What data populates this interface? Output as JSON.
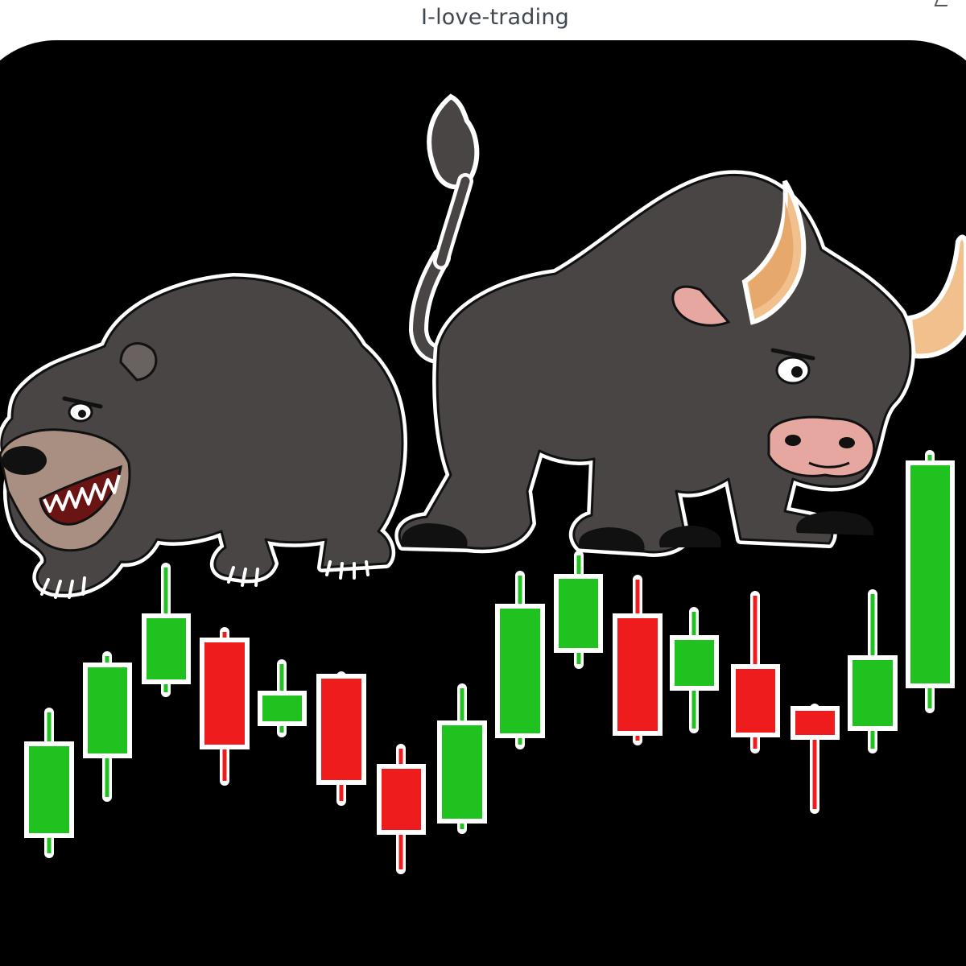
{
  "header": {
    "caption": "I-love-trading"
  },
  "artwork": {
    "subjects": [
      "bear",
      "bull"
    ],
    "background_color": "#000000",
    "outline_color": "#ffffff",
    "animal_body_color": "#4a4545",
    "horn_color": "#f1c08c",
    "snout_color": "#a88f82",
    "nose_pink": "#e6a7a0"
  },
  "candles": {
    "up_color": "#1fc21f",
    "down_color": "#ee1c1c",
    "sequence": [
      "up",
      "up",
      "up",
      "down",
      "up",
      "down",
      "down",
      "up",
      "up",
      "up",
      "down",
      "up",
      "down",
      "down",
      "up",
      "up"
    ]
  }
}
